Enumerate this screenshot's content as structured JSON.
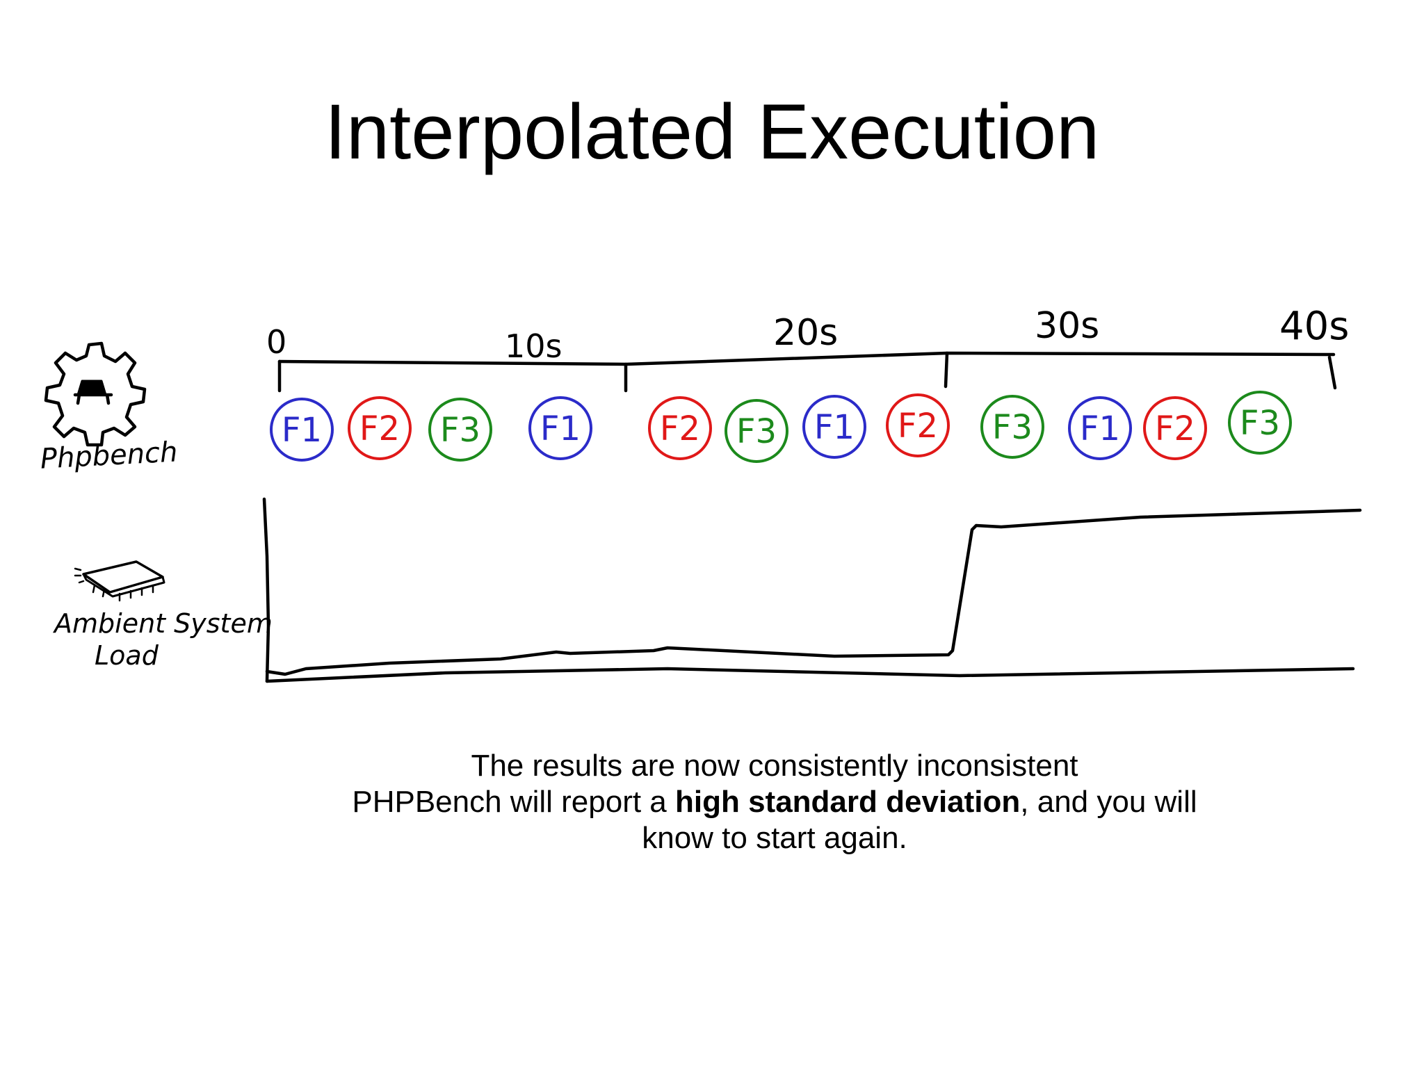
{
  "title": "Interpolated Execution",
  "colors": {
    "f1": "#2b2bc9",
    "f2": "#e01818",
    "f3": "#1c8a1c",
    "ink": "#000000"
  },
  "labels": {
    "phpbench": "Phpbench",
    "ambient_line1": "Ambient System",
    "ambient_line2": "Load",
    "phpbench_icon": "gear-icon",
    "ambient_icon": "cpu-chip-icon"
  },
  "timeline": {
    "ticks": [
      "0",
      "10s",
      "20s",
      "30s",
      "40s"
    ]
  },
  "runs": [
    "F1",
    "F2",
    "F3",
    "F1",
    "F2",
    "F3",
    "F1",
    "F2",
    "F3",
    "F1",
    "F2",
    "F3"
  ],
  "caption": {
    "line1": "The results are now consistently inconsistent",
    "line2_prefix": "PHPBench will report a ",
    "line2_bold": "high standard deviation",
    "line2_suffix": ", and you will",
    "line3": "know to start again."
  }
}
